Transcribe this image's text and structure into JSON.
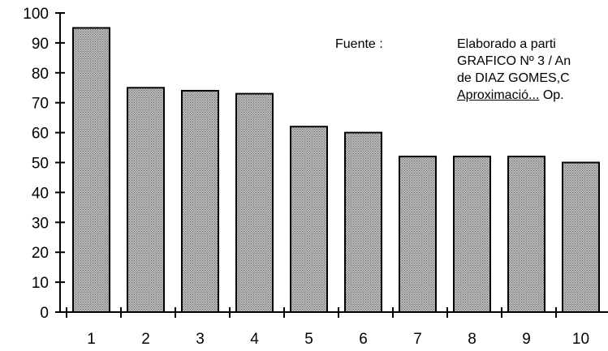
{
  "chart_data": {
    "type": "bar",
    "categories": [
      "1",
      "2",
      "3",
      "4",
      "5",
      "6",
      "7",
      "8",
      "9",
      "10"
    ],
    "values": [
      95,
      75,
      74,
      73,
      62,
      60,
      52,
      52,
      52,
      50
    ],
    "ylim": [
      0,
      100
    ],
    "yticks": [
      "0",
      "10",
      "20",
      "30",
      "40",
      "50",
      "60",
      "70",
      "80",
      "90",
      "100"
    ],
    "title": "",
    "xlabel": "",
    "ylabel": "",
    "grid": false,
    "bar_fill": "#a6a6a6",
    "bar_stroke": "#000000"
  },
  "source_note": {
    "label": "Fuente :",
    "line1": "Elaborado a parti",
    "line2": "GRAFICO Nº 3 / An",
    "line3": "de DIAZ GOMES,C",
    "line4_link": "Aproximació...",
    "line4_rest": " Op."
  }
}
